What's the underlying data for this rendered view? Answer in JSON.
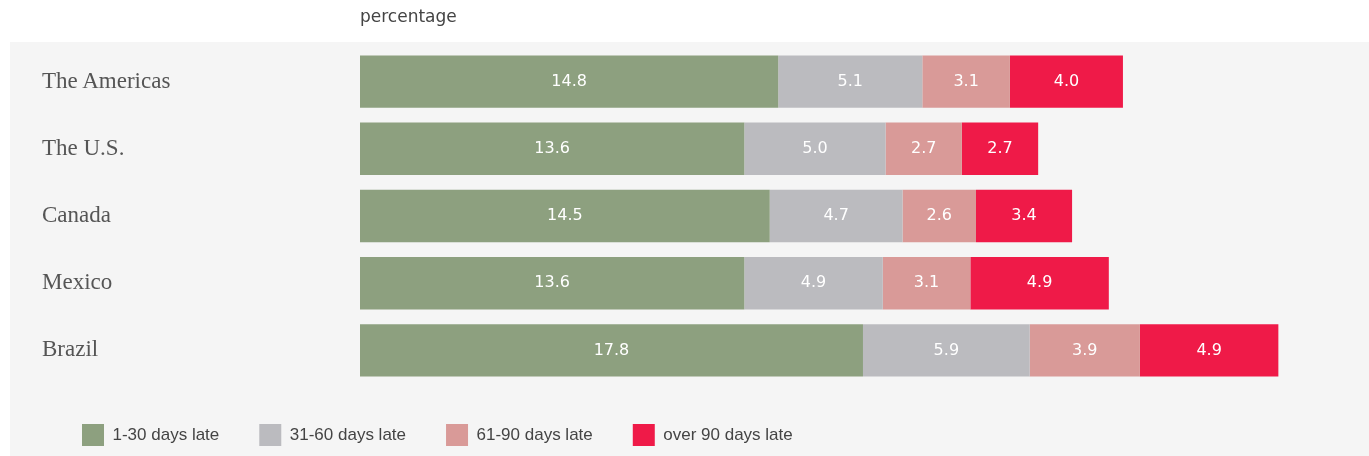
{
  "chart_data": {
    "type": "bar",
    "orientation": "horizontal",
    "stacked": true,
    "xlabel": "percentage",
    "categories": [
      "The Americas",
      "The U.S.",
      "Canada",
      "Mexico",
      "Brazil"
    ],
    "series": [
      {
        "name": "1-30 days late",
        "color": "#8da07f",
        "values": [
          14.8,
          13.6,
          14.5,
          13.6,
          17.8
        ],
        "value_labels": [
          "14.8",
          "13.6",
          "14.5",
          "13.6",
          "17.8"
        ]
      },
      {
        "name": "31-60 days late",
        "color": "#bbbbbf",
        "values": [
          5.1,
          5.0,
          4.7,
          4.9,
          5.9
        ],
        "value_labels": [
          "5.1",
          "5.0",
          "4.7",
          "4.9",
          "5.9"
        ]
      },
      {
        "name": "61-90 days late",
        "color": "#d99a98",
        "values": [
          3.1,
          2.7,
          2.6,
          3.1,
          3.9
        ],
        "value_labels": [
          "3.1",
          "2.7",
          "2.6",
          "3.1",
          "3.9"
        ]
      },
      {
        "name": "over 90 days late",
        "color": "#ef1a48",
        "values": [
          4.0,
          2.7,
          3.4,
          4.9,
          4.9
        ],
        "value_labels": [
          "4.0",
          "2.7",
          "3.4",
          "4.9",
          "4.9"
        ]
      }
    ],
    "legend": "bottom",
    "tick_labels": "y"
  }
}
